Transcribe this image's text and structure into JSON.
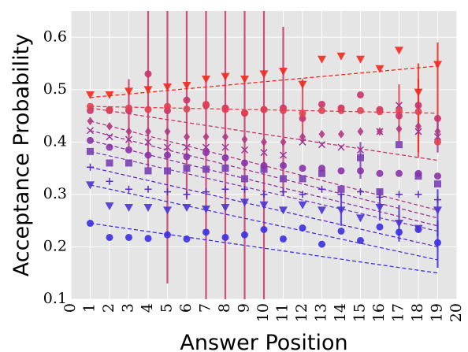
{
  "chart_data": {
    "type": "scatter",
    "title": "",
    "xlabel": "Answer Position",
    "ylabel": "Acceptance Probability",
    "xlim": [
      0,
      20
    ],
    "ylim": [
      0.1,
      0.65
    ],
    "x_ticks": [
      0,
      1,
      2,
      3,
      4,
      5,
      6,
      7,
      8,
      9,
      10,
      11,
      12,
      13,
      14,
      15,
      16,
      17,
      18,
      19,
      20
    ],
    "y_ticks": [
      0.1,
      0.2,
      0.3,
      0.4,
      0.5,
      0.6
    ],
    "grid": true,
    "background_color": "#e5e5e5",
    "grid_color": "#ffffff",
    "marker_legend": "none",
    "series": [
      {
        "marker": "circle",
        "color": "#3b2ee0",
        "x": [
          1,
          2,
          3,
          4,
          5,
          6,
          7,
          8,
          9,
          10,
          11,
          12,
          13,
          14,
          15,
          16,
          17,
          18,
          19
        ],
        "y": [
          0.245,
          0.218,
          0.218,
          0.216,
          0.223,
          0.215,
          0.228,
          0.218,
          0.223,
          0.233,
          0.215,
          0.236,
          0.205,
          0.23,
          0.212,
          0.238,
          0.228,
          0.233,
          0.208
        ],
        "fit": [
          0.245,
          0.15
        ]
      },
      {
        "marker": "triangle-down",
        "color": "#4a33d4",
        "x": [
          1,
          2,
          3,
          4,
          5,
          6,
          7,
          8,
          9,
          10,
          11,
          12,
          13,
          14,
          15,
          16,
          17,
          18,
          19
        ],
        "y": [
          0.318,
          0.278,
          0.275,
          0.275,
          0.27,
          0.275,
          0.272,
          0.275,
          0.285,
          0.28,
          0.27,
          0.28,
          0.27,
          0.27,
          0.255,
          0.275,
          0.245,
          0.235,
          0.27
        ],
        "fit": [
          0.318,
          0.175
        ]
      },
      {
        "marker": "plus",
        "color": "#5a2ac8",
        "x": [
          1,
          2,
          3,
          4,
          5,
          6,
          7,
          8,
          9,
          10,
          11,
          12,
          13,
          14,
          15,
          16,
          17,
          18,
          19
        ],
        "y": [
          0.352,
          0.325,
          0.31,
          0.31,
          0.305,
          0.3,
          0.305,
          0.31,
          0.31,
          0.3,
          0.305,
          0.3,
          0.31,
          0.3,
          0.305,
          0.295,
          0.3,
          0.3,
          0.29
        ],
        "fit": [
          0.352,
          0.2
        ]
      },
      {
        "marker": "square",
        "color": "#7a3fb5",
        "x": [
          1,
          2,
          3,
          4,
          5,
          6,
          7,
          8,
          9,
          10,
          11,
          12,
          13,
          14,
          15,
          16,
          17,
          18,
          19
        ],
        "y": [
          0.382,
          0.36,
          0.36,
          0.345,
          0.345,
          0.35,
          0.348,
          0.35,
          0.33,
          0.348,
          0.33,
          0.33,
          0.34,
          0.31,
          0.37,
          0.305,
          0.395,
          0.335,
          0.32
        ],
        "fit": [
          0.382,
          0.23
        ]
      },
      {
        "marker": "circle",
        "color": "#8a32a8",
        "x": [
          1,
          2,
          3,
          4,
          5,
          6,
          7,
          8,
          9,
          10,
          11,
          12,
          13,
          14,
          15,
          16,
          17,
          18,
          19
        ],
        "y": [
          0.403,
          0.39,
          0.385,
          0.375,
          0.375,
          0.372,
          0.38,
          0.37,
          0.36,
          0.355,
          0.355,
          0.35,
          0.35,
          0.345,
          0.345,
          0.34,
          0.34,
          0.34,
          0.335
        ],
        "fit": [
          0.403,
          0.24
        ]
      },
      {
        "marker": "x",
        "color": "#9b3598",
        "x": [
          1,
          2,
          3,
          4,
          5,
          6,
          7,
          8,
          9,
          10,
          11,
          12,
          13,
          14,
          15,
          16,
          17,
          18,
          19
        ],
        "y": [
          0.422,
          0.41,
          0.405,
          0.4,
          0.39,
          0.39,
          0.39,
          0.39,
          0.385,
          0.38,
          0.375,
          0.4,
          0.395,
          0.39,
          0.385,
          0.42,
          0.47,
          0.42,
          0.41
        ],
        "fit": [
          0.422,
          0.255
        ]
      },
      {
        "marker": "diamond",
        "color": "#b03a82",
        "x": [
          1,
          2,
          3,
          4,
          5,
          6,
          7,
          8,
          9,
          10,
          11,
          12,
          13,
          14,
          15,
          16,
          17,
          18,
          19
        ],
        "y": [
          0.44,
          0.43,
          0.42,
          0.42,
          0.42,
          0.41,
          0.41,
          0.41,
          0.405,
          0.4,
          0.4,
          0.41,
          0.415,
          0.415,
          0.42,
          0.42,
          0.425,
          0.43,
          0.42
        ],
        "fit": [
          0.44,
          0.27
        ]
      },
      {
        "marker": "circle",
        "color": "#c8336a",
        "x": [
          1,
          2,
          3,
          4,
          5,
          6,
          7,
          8,
          9,
          10,
          11,
          12,
          13,
          14,
          15,
          16,
          17,
          18,
          19
        ],
        "y": [
          0.46,
          0.46,
          0.46,
          0.53,
          0.46,
          0.48,
          0.47,
          0.465,
          0.455,
          0.462,
          0.465,
          0.445,
          0.472,
          0.465,
          0.49,
          0.462,
          0.45,
          0.47,
          0.445
        ],
        "fit": [
          0.465,
          0.365
        ]
      },
      {
        "marker": "circle",
        "color": "#e04050",
        "x": [
          1,
          2,
          3,
          4,
          5,
          6,
          7,
          8,
          9,
          10,
          11,
          12,
          13,
          14,
          15,
          16,
          17,
          18,
          19
        ],
        "y": [
          0.468,
          0.462,
          0.465,
          0.462,
          0.468,
          0.463,
          0.472,
          0.462,
          0.456,
          0.462,
          0.46,
          0.455,
          0.46,
          0.46,
          0.46,
          0.458,
          0.46,
          0.458,
          0.4
        ],
        "fit": [
          0.468,
          0.455
        ]
      },
      {
        "marker": "triangle-down",
        "color": "#f02a1f",
        "x": [
          1,
          2,
          3,
          4,
          5,
          6,
          7,
          8,
          9,
          10,
          11,
          12,
          13,
          14,
          15,
          16,
          17,
          18,
          19
        ],
        "y": [
          0.49,
          0.49,
          0.497,
          0.5,
          0.505,
          0.508,
          0.52,
          0.525,
          0.52,
          0.53,
          0.535,
          0.51,
          0.558,
          0.564,
          0.558,
          0.54,
          0.575,
          0.495,
          0.548
        ],
        "fit": [
          0.485,
          0.545
        ]
      }
    ]
  }
}
